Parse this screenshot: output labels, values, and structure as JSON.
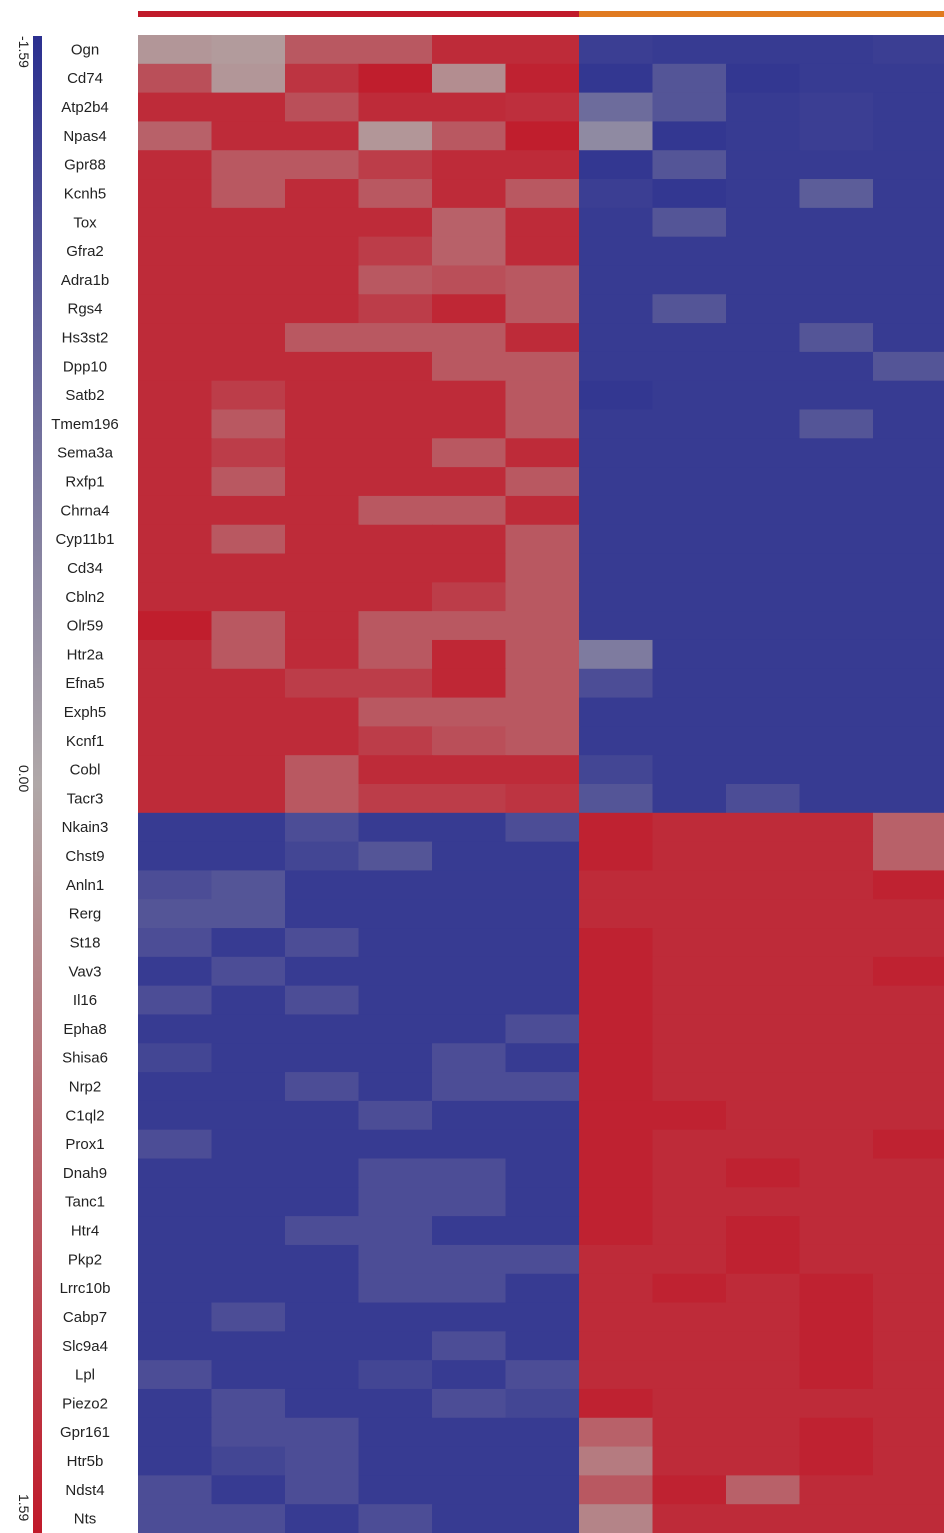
{
  "chart_data": {
    "type": "heatmap",
    "title": "",
    "xlabel": "",
    "ylabel": "",
    "colorbar": {
      "min_label": "-1.59",
      "mid_label": "0.00",
      "max_label": "1.59",
      "vmin": -1.59,
      "vmax": 1.59,
      "colors": {
        "low": "#2b3090",
        "mid": "#b0a8a8",
        "high": "#c01a2a"
      }
    },
    "column_groups": [
      {
        "color": "#c01a2a",
        "n_columns": 6
      },
      {
        "color": "#e07a20",
        "n_columns": 6
      }
    ],
    "rows": [
      "Ogn",
      "Cd74",
      "Atp2b4",
      "Npas4",
      "Gpr88",
      "Kcnh5",
      "Tox",
      "Gfra2",
      "Adra1b",
      "Rgs4",
      "Hs3st2",
      "Dpp10",
      "Satb2",
      "Tmem196",
      "Sema3a",
      "Rxfp1",
      "Chrna4",
      "Cyp11b1",
      "Cd34",
      "Cbln2",
      "Olr59",
      "Htr2a",
      "Efna5",
      "Exph5",
      "Kcnf1",
      "Cobl",
      "Tacr3",
      "Nkain3",
      "Chst9",
      "Anln1",
      "Rerg",
      "St18",
      "Vav3",
      "Il16",
      "Epha8",
      "Shisa6",
      "Nrp2",
      "C1ql2",
      "Prox1",
      "Dnah9",
      "Tanc1",
      "Htr4",
      "Pkp2",
      "Lrrc10b",
      "Cabp7",
      "Slc9a4",
      "Lpl",
      "Piezo2",
      "Gpr161",
      "Htr5b",
      "Ndst4",
      "Nts"
    ],
    "values": [
      [
        0.2,
        0.15,
        0.9,
        0.9,
        1.4,
        1.4,
        -1.4,
        -1.45,
        -1.45,
        -1.45,
        -1.4,
        -1.3
      ],
      [
        1.0,
        0.2,
        1.3,
        1.55,
        0.3,
        1.5,
        -1.5,
        -1.1,
        -1.5,
        -1.45,
        -1.45,
        -1.4
      ],
      [
        1.4,
        1.4,
        1.0,
        1.4,
        1.4,
        1.35,
        -0.8,
        -1.1,
        -1.45,
        -1.4,
        -1.45,
        -1.45
      ],
      [
        0.8,
        1.4,
        1.4,
        0.2,
        0.9,
        1.55,
        -0.4,
        -1.5,
        -1.45,
        -1.4,
        -1.45,
        -1.45
      ],
      [
        1.4,
        0.9,
        0.9,
        1.2,
        1.4,
        1.4,
        -1.5,
        -1.1,
        -1.45,
        -1.45,
        -1.45,
        -1.45
      ],
      [
        1.4,
        0.9,
        1.4,
        0.9,
        1.4,
        0.9,
        -1.4,
        -1.5,
        -1.45,
        -1.0,
        -1.45,
        -1.45
      ],
      [
        1.4,
        1.4,
        1.4,
        1.4,
        0.8,
        1.4,
        -1.45,
        -1.1,
        -1.45,
        -1.45,
        -1.45,
        -1.45
      ],
      [
        1.4,
        1.4,
        1.4,
        1.2,
        0.8,
        1.4,
        -1.45,
        -1.45,
        -1.45,
        -1.45,
        -1.45,
        -1.45
      ],
      [
        1.4,
        1.4,
        1.4,
        0.9,
        1.0,
        0.9,
        -1.45,
        -1.45,
        -1.45,
        -1.45,
        -1.45,
        -1.45
      ],
      [
        1.4,
        1.4,
        1.4,
        1.2,
        1.45,
        0.9,
        -1.45,
        -1.1,
        -1.45,
        -1.45,
        -1.45,
        -1.45
      ],
      [
        1.4,
        1.4,
        0.9,
        0.9,
        0.9,
        1.4,
        -1.45,
        -1.45,
        -1.45,
        -1.1,
        -1.45,
        -1.45
      ],
      [
        1.4,
        1.4,
        1.4,
        1.4,
        0.9,
        0.9,
        -1.45,
        -1.45,
        -1.45,
        -1.45,
        -1.1,
        -1.45
      ],
      [
        1.4,
        1.2,
        1.4,
        1.4,
        1.4,
        0.9,
        -1.5,
        -1.45,
        -1.45,
        -1.45,
        -1.45,
        -1.45
      ],
      [
        1.4,
        0.9,
        1.4,
        1.4,
        1.4,
        0.9,
        -1.45,
        -1.45,
        -1.45,
        -1.1,
        -1.45,
        -1.45
      ],
      [
        1.4,
        1.2,
        1.4,
        1.4,
        0.9,
        1.4,
        -1.45,
        -1.45,
        -1.45,
        -1.45,
        -1.45,
        -1.45
      ],
      [
        1.4,
        0.9,
        1.4,
        1.4,
        1.4,
        0.9,
        -1.45,
        -1.45,
        -1.45,
        -1.45,
        -1.45,
        -1.45
      ],
      [
        1.4,
        1.4,
        1.4,
        0.9,
        0.9,
        1.4,
        -1.45,
        -1.45,
        -1.45,
        -1.45,
        -1.45,
        -1.45
      ],
      [
        1.4,
        0.9,
        1.4,
        1.4,
        1.4,
        0.9,
        -1.45,
        -1.45,
        -1.45,
        -1.45,
        -1.45,
        -1.45
      ],
      [
        1.4,
        1.4,
        1.4,
        1.4,
        1.4,
        0.9,
        -1.45,
        -1.45,
        -1.45,
        -1.45,
        -1.45,
        -1.45
      ],
      [
        1.4,
        1.4,
        1.4,
        1.4,
        1.2,
        0.9,
        -1.45,
        -1.45,
        -1.45,
        -1.45,
        -1.45,
        -1.45
      ],
      [
        1.55,
        0.9,
        1.4,
        0.9,
        0.9,
        0.9,
        -1.45,
        -1.45,
        -1.45,
        -1.45,
        -1.45,
        -1.45
      ],
      [
        1.4,
        0.9,
        1.4,
        0.9,
        1.45,
        0.9,
        -0.6,
        -1.45,
        -1.45,
        -1.45,
        -1.45,
        -1.45
      ],
      [
        1.4,
        1.4,
        1.2,
        1.2,
        1.45,
        0.9,
        -1.2,
        -1.45,
        -1.45,
        -1.45,
        -1.45,
        -1.45
      ],
      [
        1.4,
        1.4,
        1.4,
        0.9,
        0.9,
        0.9,
        -1.45,
        -1.45,
        -1.45,
        -1.45,
        -1.45,
        -1.45
      ],
      [
        1.4,
        1.4,
        1.4,
        1.2,
        1.0,
        0.9,
        -1.45,
        -1.45,
        -1.45,
        -1.45,
        -1.45,
        -1.45
      ],
      [
        1.4,
        1.4,
        0.9,
        1.4,
        1.4,
        1.4,
        -1.3,
        -1.45,
        -1.45,
        -1.45,
        -1.45,
        -1.45
      ],
      [
        1.4,
        1.4,
        0.9,
        1.2,
        1.2,
        1.3,
        -1.1,
        -1.45,
        -1.2,
        -1.45,
        -1.45,
        -1.45
      ],
      [
        -1.45,
        -1.45,
        -1.2,
        -1.45,
        -1.45,
        -1.2,
        1.5,
        1.4,
        1.4,
        1.4,
        0.8,
        1.5
      ],
      [
        -1.45,
        -1.45,
        -1.3,
        -1.1,
        -1.45,
        -1.45,
        1.5,
        1.4,
        1.4,
        1.4,
        0.8,
        1.5
      ],
      [
        -1.2,
        -1.1,
        -1.45,
        -1.45,
        -1.45,
        -1.45,
        1.4,
        1.4,
        1.4,
        1.4,
        1.5,
        1.5
      ],
      [
        -1.1,
        -1.1,
        -1.45,
        -1.45,
        -1.45,
        -1.45,
        1.4,
        1.4,
        1.4,
        1.4,
        1.4,
        1.5
      ],
      [
        -1.2,
        -1.45,
        -1.2,
        -1.45,
        -1.45,
        -1.45,
        1.5,
        1.4,
        1.4,
        1.4,
        1.4,
        1.4
      ],
      [
        -1.45,
        -1.2,
        -1.45,
        -1.45,
        -1.45,
        -1.45,
        1.5,
        1.4,
        1.4,
        1.4,
        1.5,
        1.45
      ],
      [
        -1.2,
        -1.45,
        -1.2,
        -1.45,
        -1.45,
        -1.45,
        1.5,
        1.4,
        1.4,
        1.4,
        1.4,
        1.45
      ],
      [
        -1.45,
        -1.45,
        -1.45,
        -1.45,
        -1.45,
        -1.2,
        1.5,
        1.4,
        1.4,
        1.4,
        1.4,
        1.5
      ],
      [
        -1.3,
        -1.45,
        -1.45,
        -1.45,
        -1.2,
        -1.45,
        1.5,
        1.4,
        1.4,
        1.4,
        1.4,
        1.5
      ],
      [
        -1.45,
        -1.45,
        -1.2,
        -1.45,
        -1.2,
        -1.2,
        1.5,
        1.4,
        1.4,
        1.4,
        1.4,
        1.5
      ],
      [
        -1.45,
        -1.45,
        -1.45,
        -1.2,
        -1.45,
        -1.45,
        1.5,
        1.5,
        1.4,
        1.4,
        1.4,
        1.45
      ],
      [
        -1.2,
        -1.45,
        -1.45,
        -1.45,
        -1.45,
        -1.45,
        1.5,
        1.4,
        1.4,
        1.4,
        1.5,
        1.45
      ],
      [
        -1.45,
        -1.45,
        -1.45,
        -1.2,
        -1.2,
        -1.45,
        1.5,
        1.4,
        1.5,
        1.4,
        1.4,
        1.45
      ],
      [
        -1.45,
        -1.45,
        -1.45,
        -1.2,
        -1.2,
        -1.45,
        1.5,
        1.4,
        1.4,
        1.4,
        1.4,
        1.45
      ],
      [
        -1.45,
        -1.45,
        -1.2,
        -1.2,
        -1.45,
        -1.45,
        1.5,
        1.4,
        1.5,
        1.4,
        1.4,
        1.45
      ],
      [
        -1.45,
        -1.45,
        -1.45,
        -1.2,
        -1.2,
        -1.2,
        1.4,
        1.4,
        1.5,
        1.4,
        1.4,
        1.5
      ],
      [
        -1.45,
        -1.45,
        -1.45,
        -1.2,
        -1.2,
        -1.45,
        1.4,
        1.5,
        1.4,
        1.5,
        1.4,
        1.45
      ],
      [
        -1.45,
        -1.2,
        -1.45,
        -1.45,
        -1.45,
        -1.45,
        1.4,
        1.4,
        1.4,
        1.5,
        1.4,
        1.45
      ],
      [
        -1.45,
        -1.45,
        -1.45,
        -1.45,
        -1.2,
        -1.45,
        1.4,
        1.4,
        1.4,
        1.5,
        1.4,
        1.45
      ],
      [
        -1.2,
        -1.45,
        -1.45,
        -1.3,
        -1.45,
        -1.2,
        1.4,
        1.4,
        1.4,
        1.5,
        1.4,
        1.45
      ],
      [
        -1.45,
        -1.2,
        -1.45,
        -1.45,
        -1.2,
        -1.3,
        1.5,
        1.4,
        1.4,
        1.4,
        1.4,
        1.4
      ],
      [
        -1.45,
        -1.2,
        -1.2,
        -1.45,
        -1.45,
        -1.45,
        0.8,
        1.4,
        1.4,
        1.5,
        1.4,
        1.45
      ],
      [
        -1.45,
        -1.3,
        -1.2,
        -1.45,
        -1.45,
        -1.45,
        0.5,
        1.4,
        1.4,
        1.5,
        1.4,
        1.45
      ],
      [
        -1.2,
        -1.45,
        -1.2,
        -1.45,
        -1.45,
        -1.45,
        0.9,
        1.5,
        0.8,
        1.4,
        1.4,
        1.45
      ],
      [
        -1.2,
        -1.2,
        -1.45,
        -1.2,
        -1.45,
        -1.45,
        0.4,
        1.4,
        1.4,
        1.4,
        1.4,
        1.45
      ]
    ]
  }
}
